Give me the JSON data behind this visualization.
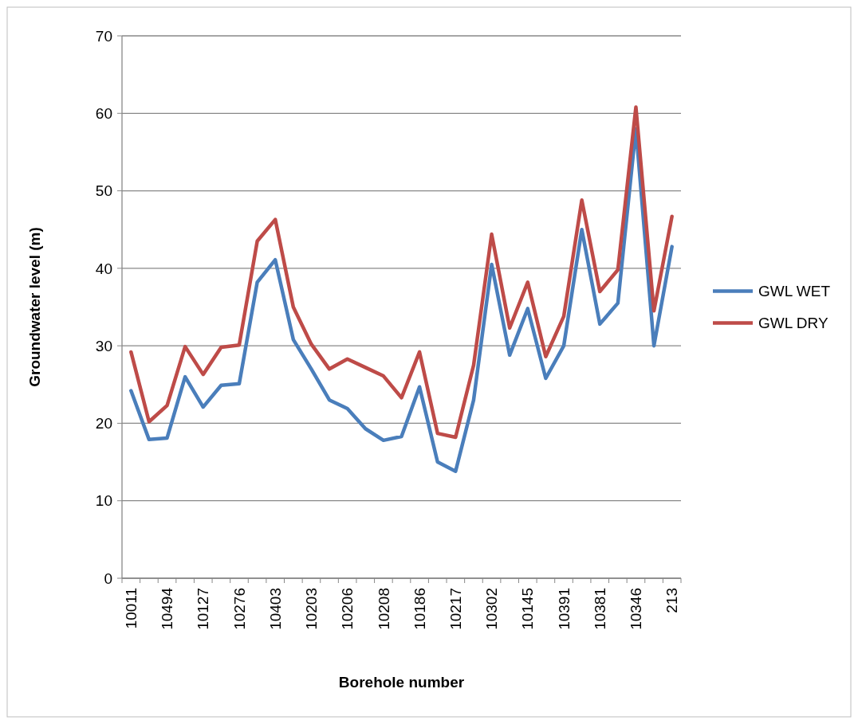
{
  "chart_data": {
    "type": "line",
    "xlabel": "Borehole number",
    "ylabel": "Groundwater level (m)",
    "categories": [
      "10011",
      null,
      "10494",
      null,
      "10127",
      null,
      "10276",
      null,
      "10403",
      null,
      "10203",
      null,
      "10206",
      null,
      "10208",
      null,
      "10186",
      null,
      "10217",
      null,
      "10302",
      null,
      "10145",
      null,
      "10391",
      null,
      "10381",
      null,
      "10346",
      null,
      "213"
    ],
    "series": [
      {
        "name": "GWL WET",
        "color": "#4a7ebb",
        "values": [
          24.2,
          17.9,
          18.1,
          26,
          22.1,
          24.9,
          25.1,
          38.2,
          41.1,
          30.8,
          27,
          23,
          21.9,
          19.3,
          17.8,
          18.3,
          24.7,
          15,
          13.8,
          23,
          40.5,
          28.8,
          34.8,
          25.8,
          30,
          45,
          32.8,
          35.5,
          58,
          30,
          42.8
        ]
      },
      {
        "name": "GWL DRY",
        "color": "#be4b48",
        "values": [
          29.2,
          20.2,
          22.3,
          29.9,
          26.3,
          29.8,
          30.1,
          43.5,
          46.3,
          35,
          30.2,
          27,
          28.3,
          27.2,
          26.1,
          23.3,
          29.2,
          18.7,
          18.2,
          27.5,
          44.4,
          32.3,
          38.2,
          28.6,
          33.8,
          48.8,
          37,
          39.8,
          60.8,
          34.5,
          46.7
        ]
      }
    ],
    "ylim": [
      0,
      70
    ],
    "yticks": [
      0,
      10,
      20,
      30,
      40,
      50,
      60,
      70
    ],
    "grid": "y",
    "legend": "right",
    "marker": "none",
    "line_style": "solid"
  }
}
